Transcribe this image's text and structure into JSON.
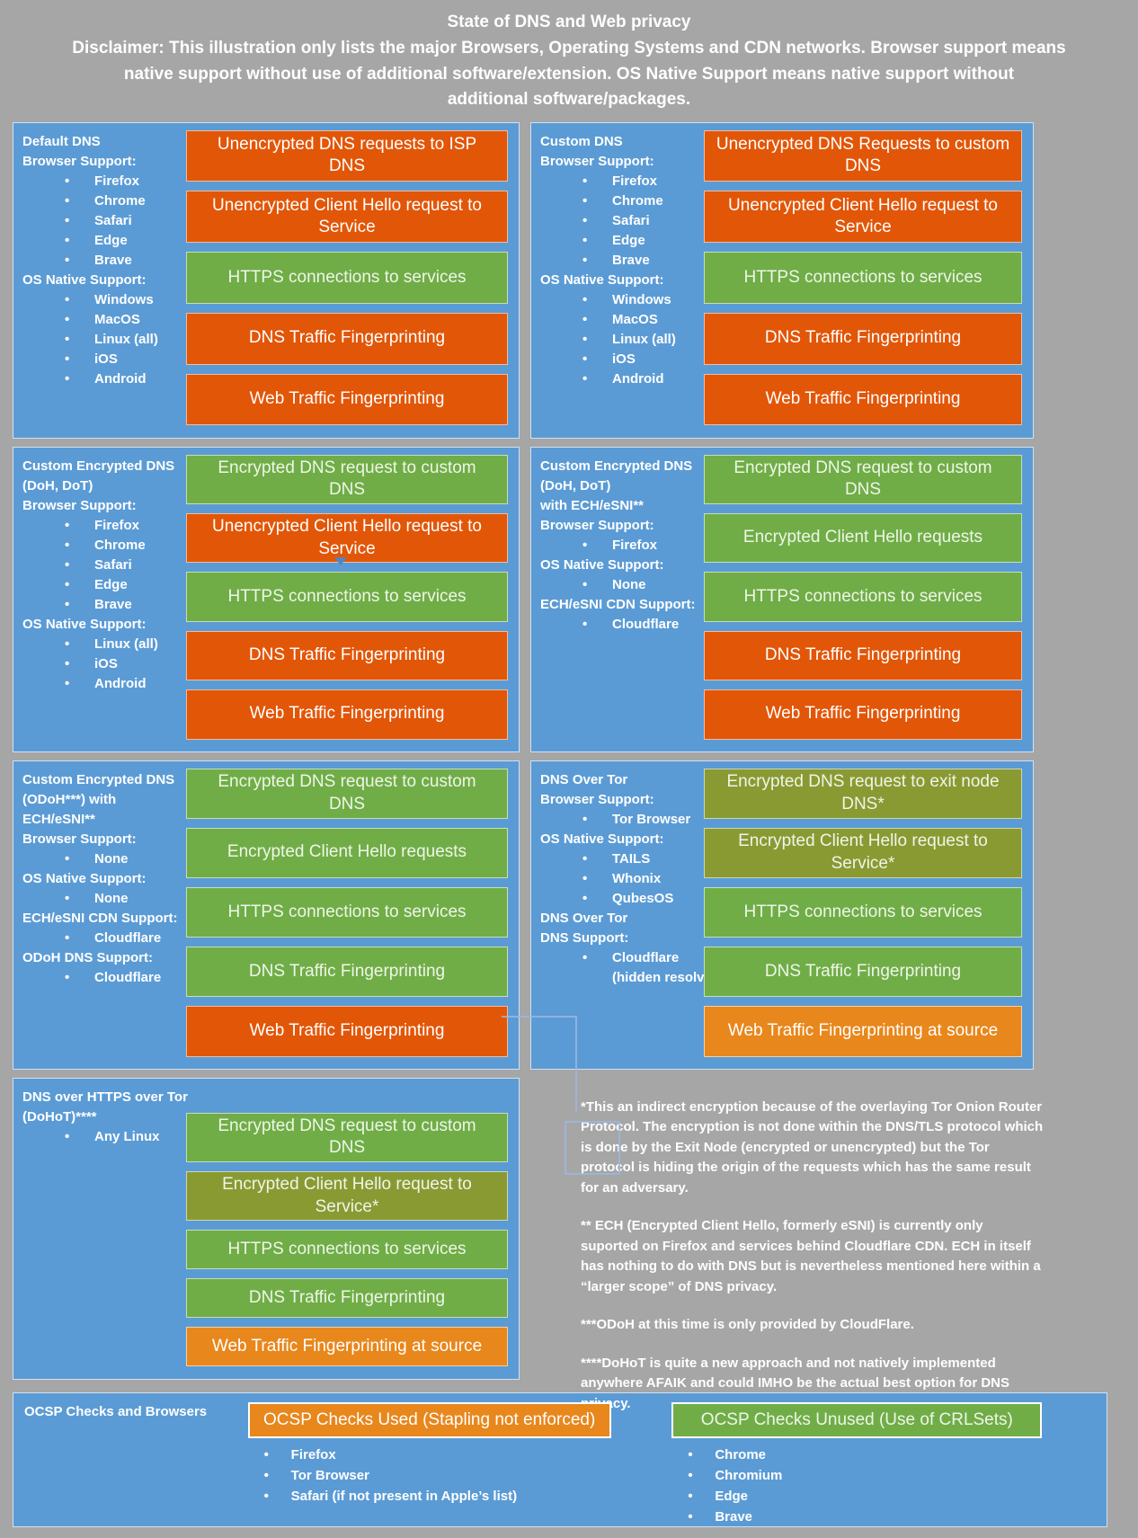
{
  "header": {
    "title": "State of DNS and Web privacy",
    "disclaimer": "Disclaimer: This illustration only lists the major Browsers, Operating Systems and CDN networks. Browser support means\nnative support without use of additional software/extension. OS Native Support means native support without\nadditional software/packages."
  },
  "colors": {
    "background_gray": "#a6a6a6",
    "panel_blue": "#5b9bd5",
    "bar_orange": "#e25608",
    "bar_green": "#70ad47",
    "bar_olive": "#8a9a33",
    "bar_light_orange": "#e8871c"
  },
  "panels": [
    {
      "id": "default-dns",
      "sidebar": [
        {
          "t": "label",
          "text": "Default DNS"
        },
        {
          "t": "label",
          "text": "Browser Support:"
        },
        {
          "t": "bullet",
          "text": "Firefox"
        },
        {
          "t": "bullet",
          "text": "Chrome"
        },
        {
          "t": "bullet",
          "text": "Safari"
        },
        {
          "t": "bullet",
          "text": "Edge"
        },
        {
          "t": "bullet",
          "text": "Brave"
        },
        {
          "t": "label",
          "text": "OS Native Support:"
        },
        {
          "t": "bullet",
          "text": "Windows"
        },
        {
          "t": "bullet",
          "text": "MacOS"
        },
        {
          "t": "bullet",
          "text": "Linux (all)"
        },
        {
          "t": "bullet",
          "text": "iOS"
        },
        {
          "t": "bullet",
          "text": "Android"
        }
      ],
      "bars": [
        {
          "text": "Unencrypted DNS requests to ISP DNS",
          "color": "orange"
        },
        {
          "text": "Unencrypted Client Hello request to Service",
          "color": "orange"
        },
        {
          "text": "HTTPS connections to services",
          "color": "green"
        },
        {
          "text": "DNS Traffic Fingerprinting",
          "color": "orange"
        },
        {
          "text": "Web Traffic Fingerprinting",
          "color": "orange"
        }
      ]
    },
    {
      "id": "custom-dns",
      "sidebar": [
        {
          "t": "label",
          "text": "Custom DNS"
        },
        {
          "t": "label",
          "text": "Browser Support:"
        },
        {
          "t": "bullet",
          "text": "Firefox"
        },
        {
          "t": "bullet",
          "text": "Chrome"
        },
        {
          "t": "bullet",
          "text": "Safari"
        },
        {
          "t": "bullet",
          "text": "Edge"
        },
        {
          "t": "bullet",
          "text": "Brave"
        },
        {
          "t": "label",
          "text": "OS Native Support:"
        },
        {
          "t": "bullet",
          "text": "Windows"
        },
        {
          "t": "bullet",
          "text": "MacOS"
        },
        {
          "t": "bullet",
          "text": "Linux (all)"
        },
        {
          "t": "bullet",
          "text": "iOS"
        },
        {
          "t": "bullet",
          "text": "Android"
        }
      ],
      "bars": [
        {
          "text": "Unencrypted DNS Requests to custom DNS",
          "color": "orange"
        },
        {
          "text": "Unencrypted Client Hello request to Service",
          "color": "orange"
        },
        {
          "text": "HTTPS connections to services",
          "color": "green"
        },
        {
          "text": "DNS Traffic Fingerprinting",
          "color": "orange"
        },
        {
          "text": "Web Traffic Fingerprinting",
          "color": "orange"
        }
      ]
    },
    {
      "id": "custom-encrypted-dns-doh-dot",
      "sidebar": [
        {
          "t": "label",
          "text": "Custom Encrypted DNS"
        },
        {
          "t": "label",
          "text": "(DoH, DoT)"
        },
        {
          "t": "label",
          "text": "Browser Support:"
        },
        {
          "t": "bullet",
          "text": "Firefox"
        },
        {
          "t": "bullet",
          "text": "Chrome"
        },
        {
          "t": "bullet",
          "text": "Safari"
        },
        {
          "t": "bullet",
          "text": "Edge"
        },
        {
          "t": "bullet",
          "text": "Brave"
        },
        {
          "t": "label",
          "text": "OS Native Support:"
        },
        {
          "t": "bullet",
          "text": "Linux (all)"
        },
        {
          "t": "bullet",
          "text": "iOS"
        },
        {
          "t": "bullet",
          "text": "Android"
        }
      ],
      "bars": [
        {
          "text": "Encrypted DNS request to custom DNS",
          "color": "green"
        },
        {
          "text": "Unencrypted Client Hello request to Service",
          "color": "orange"
        },
        {
          "text": "HTTPS connections to services",
          "color": "green"
        },
        {
          "text": "DNS Traffic Fingerprinting",
          "color": "orange"
        },
        {
          "text": "Web Traffic Fingerprinting",
          "color": "orange"
        }
      ]
    },
    {
      "id": "custom-encrypted-dns-doh-dot-ech",
      "sidebar": [
        {
          "t": "label",
          "text": "Custom Encrypted DNS"
        },
        {
          "t": "label",
          "text": "(DoH, DoT)"
        },
        {
          "t": "label",
          "text": "with ECH/eSNI**"
        },
        {
          "t": "label",
          "text": "Browser Support:"
        },
        {
          "t": "bullet",
          "text": "Firefox"
        },
        {
          "t": "label",
          "text": "OS Native Support:"
        },
        {
          "t": "bullet",
          "text": "None"
        },
        {
          "t": "label",
          "text": "ECH/eSNI CDN Support:"
        },
        {
          "t": "bullet",
          "text": "Cloudflare"
        }
      ],
      "bars": [
        {
          "text": "Encrypted DNS request to custom DNS",
          "color": "green"
        },
        {
          "text": "Encrypted Client Hello requests",
          "color": "green"
        },
        {
          "text": "HTTPS connections to services",
          "color": "green"
        },
        {
          "text": "DNS Traffic Fingerprinting",
          "color": "orange"
        },
        {
          "text": "Web Traffic Fingerprinting",
          "color": "orange"
        }
      ]
    },
    {
      "id": "custom-encrypted-dns-odoh-ech",
      "sidebar": [
        {
          "t": "label",
          "text": "Custom Encrypted DNS"
        },
        {
          "t": "label",
          "text": "(ODoH***) with"
        },
        {
          "t": "label",
          "text": "ECH/eSNI**"
        },
        {
          "t": "label",
          "text": "Browser Support:"
        },
        {
          "t": "bullet",
          "text": "None"
        },
        {
          "t": "label",
          "text": "OS Native Support:"
        },
        {
          "t": "bullet",
          "text": "None"
        },
        {
          "t": "label",
          "text": "ECH/eSNI CDN Support:"
        },
        {
          "t": "bullet",
          "text": "Cloudflare"
        },
        {
          "t": "label",
          "text": "ODoH DNS Support:"
        },
        {
          "t": "bullet",
          "text": "Cloudflare"
        }
      ],
      "bars": [
        {
          "text": "Encrypted DNS request to custom DNS",
          "color": "green"
        },
        {
          "text": "Encrypted Client Hello requests",
          "color": "green"
        },
        {
          "text": "HTTPS connections to services",
          "color": "green"
        },
        {
          "text": "DNS Traffic Fingerprinting",
          "color": "green"
        },
        {
          "text": "Web Traffic Fingerprinting",
          "color": "orange"
        }
      ]
    },
    {
      "id": "dns-over-tor",
      "sidebar": [
        {
          "t": "label",
          "text": "DNS Over Tor"
        },
        {
          "t": "label",
          "text": "Browser Support:"
        },
        {
          "t": "bullet",
          "text": "Tor Browser"
        },
        {
          "t": "label",
          "text": "OS Native Support:"
        },
        {
          "t": "bullet",
          "text": "TAILS"
        },
        {
          "t": "bullet",
          "text": "Whonix"
        },
        {
          "t": "bullet",
          "text": "QubesOS"
        },
        {
          "t": "label",
          "text": "DNS Over Tor"
        },
        {
          "t": "label",
          "text": "DNS Support:"
        },
        {
          "t": "bullet",
          "text": "Cloudflare"
        },
        {
          "t": "indent",
          "text": "(hidden resolver)"
        }
      ],
      "bars": [
        {
          "text": "Encrypted DNS request to exit node DNS*",
          "color": "olive"
        },
        {
          "text": "Encrypted Client Hello request to Service*",
          "color": "olive"
        },
        {
          "text": "HTTPS connections to services",
          "color": "green"
        },
        {
          "text": "DNS Traffic Fingerprinting",
          "color": "green"
        },
        {
          "text": "Web Traffic Fingerprinting at source",
          "color": "light_orange"
        }
      ]
    },
    {
      "id": "dohot",
      "sidebar": [
        {
          "t": "label",
          "text": "DNS over HTTPS over Tor"
        },
        {
          "t": "label",
          "text": "(DoHoT)****"
        },
        {
          "t": "bullet",
          "text": "Any Linux"
        }
      ],
      "bars": [
        {
          "text": "Encrypted DNS request to custom DNS",
          "color": "green"
        },
        {
          "text": "Encrypted Client Hello request to Service*",
          "color": "olive"
        },
        {
          "text": "HTTPS connections to services",
          "color": "green"
        },
        {
          "text": "DNS Traffic Fingerprinting",
          "color": "green"
        },
        {
          "text": "Web Traffic Fingerprinting at source",
          "color": "light_orange"
        }
      ]
    }
  ],
  "footnotes": [
    "*This an indirect encryption because of the overlaying Tor Onion Router Protocol. The encryption is not done within the DNS/TLS protocol which is done by the Exit Node (encrypted or unencrypted) but the Tor protocol is hiding the origin of the requests which has the same result for an adversary.",
    "** ECH (Encrypted Client Hello, formerly eSNI) is currently only suported on Firefox and services behind Cloudflare CDN. ECH in itself has nothing to do with DNS but is nevertheless mentioned here within a “larger scope” of DNS privacy.",
    "***ODoH at this time is only provided by CloudFlare.",
    "****DoHoT is quite a new approach and not natively implemented anywhere AFAIK and could IMHO be the actual best option for DNS privacy."
  ],
  "ocsp": {
    "title": "OCSP Checks and Browsers",
    "used": {
      "header": "OCSP Checks Used (Stapling not enforced)",
      "items": [
        "Firefox",
        "Tor Browser",
        "Safari (if not present in Apple’s list)"
      ]
    },
    "unused": {
      "header": "OCSP Checks Unused (Use of CRLSets)",
      "items": [
        "Chrome",
        "Chromium",
        "Edge",
        "Brave"
      ]
    }
  }
}
